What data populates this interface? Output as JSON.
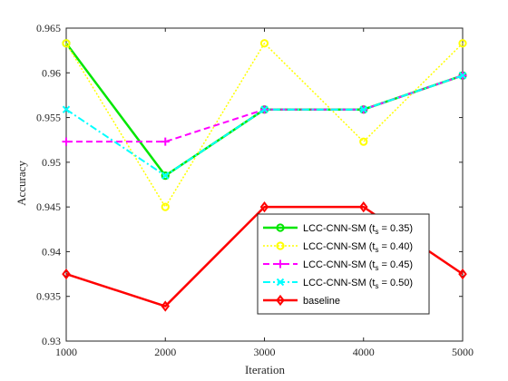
{
  "chart_data": {
    "type": "line",
    "title": "",
    "xlabel": "Iteration",
    "ylabel": "Accuracy",
    "x": [
      1000,
      2000,
      3000,
      4000,
      5000
    ],
    "xlim": [
      1000,
      5000
    ],
    "ylim": [
      0.93,
      0.965
    ],
    "xticks": [
      "1000",
      "2000",
      "3000",
      "4000",
      "5000"
    ],
    "yticks": [
      "0.93",
      "0.935",
      "0.94",
      "0.945",
      "0.95",
      "0.955",
      "0.96",
      "0.965"
    ],
    "grid": false,
    "legend_position": "lower-right",
    "series": [
      {
        "label_main": "LCC-CNN-SM (t",
        "label_sub": "s",
        "label_end": " = 0.35)",
        "color": "#00e600",
        "dash": "",
        "width": 2.5,
        "marker": "circle",
        "values": [
          0.9633,
          0.9485,
          0.9559,
          0.9559,
          0.9597
        ]
      },
      {
        "label_main": "LCC-CNN-SM (t",
        "label_sub": "s",
        "label_end": " = 0.40)",
        "color": "#ffff00",
        "dash": "2,2",
        "width": 1.5,
        "marker": "circle",
        "values": [
          0.9633,
          0.945,
          0.9633,
          0.9523,
          0.9633
        ]
      },
      {
        "label_main": "LCC-CNN-SM (t",
        "label_sub": "s",
        "label_end": " = 0.45)",
        "color": "#ff00ff",
        "dash": "7,4",
        "width": 2,
        "marker": "plus",
        "values": [
          0.9523,
          0.9523,
          0.9559,
          0.9559,
          0.9597
        ]
      },
      {
        "label_main": "LCC-CNN-SM (t",
        "label_sub": "s",
        "label_end": " = 0.50)",
        "color": "#00ffff",
        "dash": "8,3,2,3",
        "width": 2,
        "marker": "x",
        "values": [
          0.9559,
          0.9485,
          0.9559,
          0.9559,
          0.9597
        ]
      },
      {
        "label_main": "baseline",
        "label_sub": "",
        "label_end": "",
        "color": "#ff0000",
        "dash": "",
        "width": 2.5,
        "marker": "diamond",
        "values": [
          0.9375,
          0.9339,
          0.945,
          0.945,
          0.9375
        ]
      }
    ]
  }
}
